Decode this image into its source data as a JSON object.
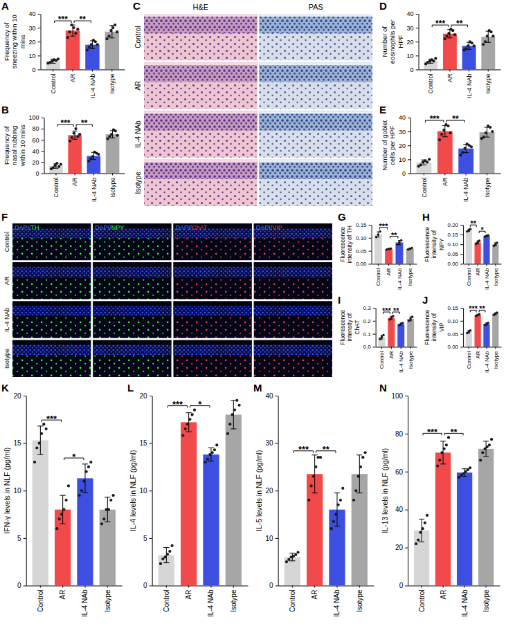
{
  "chart_data": [
    {
      "panel": "A",
      "type": "bar",
      "y_label": "Frequency of sneezing within 10 mins",
      "categories": [
        "Control",
        "AR",
        "IL-4 NAb",
        "Isotype"
      ],
      "values": [
        6,
        28,
        17.8,
        27.2
      ],
      "errors": [
        1.5,
        4,
        2.8,
        4.5
      ],
      "points": [
        [
          4.5,
          5,
          6,
          7,
          6.5,
          7.5
        ],
        [
          23,
          27,
          32,
          30,
          26,
          29
        ],
        [
          14,
          16,
          18,
          21,
          20,
          18
        ],
        [
          22,
          24,
          28,
          30,
          32,
          27
        ]
      ],
      "colors": [
        "#d6d6d6",
        "#f24a4a",
        "#3d4fe0",
        "#a6a6a6"
      ],
      "ylim": [
        0,
        40
      ],
      "yticks": [
        0,
        10,
        20,
        30,
        40
      ],
      "annotations": [
        {
          "between": [
            "Control",
            "AR"
          ],
          "text": "***"
        },
        {
          "between": [
            "AR",
            "IL-4 NAb"
          ],
          "text": "**"
        }
      ]
    },
    {
      "panel": "B",
      "type": "bar",
      "y_label": "Frequency of nasal rubbing within 10 mins",
      "categories": [
        "Control",
        "AR",
        "IL-4 NAb",
        "Isotype"
      ],
      "values": [
        13,
        68.5,
        31,
        70
      ],
      "errors": [
        4,
        7.5,
        6.5,
        6.5
      ],
      "points": [
        [
          8,
          10,
          14,
          18,
          12,
          16
        ],
        [
          58,
          64,
          72,
          80,
          66,
          70
        ],
        [
          22,
          26,
          30,
          38,
          36,
          34
        ],
        [
          62,
          66,
          70,
          78,
          76,
          68
        ]
      ],
      "colors": [
        "#d6d6d6",
        "#f24a4a",
        "#3d4fe0",
        "#a6a6a6"
      ],
      "ylim": [
        0,
        100
      ],
      "yticks": [
        0,
        20,
        40,
        60,
        80,
        100
      ],
      "annotations": [
        {
          "between": [
            "Control",
            "AR"
          ],
          "text": "***"
        },
        {
          "between": [
            "AR",
            "IL-4 NAb"
          ],
          "text": "**"
        }
      ]
    },
    {
      "panel": "D",
      "type": "bar",
      "y_label": "Number of eosinophils per HPF",
      "categories": [
        "Control",
        "AR",
        "IL-4 NAb",
        "Isotype"
      ],
      "values": [
        6,
        25.7,
        17,
        23.5
      ],
      "errors": [
        1.5,
        3,
        2.5,
        4
      ],
      "points": [
        [
          4,
          5,
          6,
          7,
          6,
          8
        ],
        [
          22,
          24,
          26,
          29,
          28,
          25
        ],
        [
          14,
          15,
          17,
          20,
          19,
          17
        ],
        [
          18,
          20,
          24,
          28,
          27,
          24
        ]
      ],
      "colors": [
        "#d6d6d6",
        "#f24a4a",
        "#3d4fe0",
        "#a6a6a6"
      ],
      "ylim": [
        0,
        40
      ],
      "yticks": [
        0,
        10,
        20,
        30,
        40
      ],
      "annotations": [
        {
          "between": [
            "Control",
            "AR"
          ],
          "text": "***"
        },
        {
          "between": [
            "AR",
            "IL-4 NAb"
          ],
          "text": "**"
        }
      ]
    },
    {
      "panel": "E",
      "type": "bar",
      "y_label": "Number of goblet cells per HPF",
      "categories": [
        "Control",
        "AR",
        "IL-4 NAb",
        "Isotype"
      ],
      "values": [
        7.8,
        30.2,
        17.8,
        29.5
      ],
      "errors": [
        1.8,
        4,
        3,
        3.5
      ],
      "points": [
        [
          5,
          6,
          8,
          9,
          8,
          10
        ],
        [
          24,
          28,
          31,
          35,
          34,
          29
        ],
        [
          13,
          15,
          18,
          21,
          20,
          19
        ],
        [
          25,
          26,
          29,
          34,
          33,
          30
        ]
      ],
      "colors": [
        "#d6d6d6",
        "#f24a4a",
        "#3d4fe0",
        "#a6a6a6"
      ],
      "ylim": [
        0,
        40
      ],
      "yticks": [
        0,
        10,
        20,
        30,
        40
      ],
      "annotations": [
        {
          "between": [
            "Control",
            "AR"
          ],
          "text": "***"
        },
        {
          "between": [
            "AR",
            "IL-4 NAb"
          ],
          "text": "**"
        }
      ]
    },
    {
      "panel": "G",
      "type": "bar",
      "y_label": "Fluorescence intensity of TH",
      "categories": [
        "Control",
        "AR",
        "IL-4 NAb",
        "Isotype"
      ],
      "values": [
        0.113,
        0.057,
        0.082,
        0.058
      ],
      "errors": [
        0.01,
        0.002,
        0.008,
        0.003
      ],
      "points": [
        [
          0.103,
          0.112,
          0.124
        ],
        [
          0.055,
          0.057,
          0.059
        ],
        [
          0.074,
          0.083,
          0.09
        ],
        [
          0.055,
          0.058,
          0.061
        ]
      ],
      "colors": [
        "#d6d6d6",
        "#f24a4a",
        "#3d4fe0",
        "#a6a6a6"
      ],
      "ylim": [
        0,
        0.15
      ],
      "yticks": [
        {
          "value": 0,
          "label": "0.00"
        },
        0.05,
        {
          "value": 0.1,
          "label": "0.10"
        },
        0.15
      ],
      "annotations": [
        {
          "between": [
            "Control",
            "AR"
          ],
          "text": "***"
        },
        {
          "between": [
            "AR",
            "IL-4 NAb"
          ],
          "text": "**"
        }
      ]
    },
    {
      "panel": "H",
      "type": "bar",
      "y_label": "Fluorescence intensity of NPY",
      "categories": [
        "Control",
        "AR",
        "IL-4 NAb",
        "Isotype"
      ],
      "values": [
        0.172,
        0.11,
        0.143,
        0.1
      ],
      "errors": [
        0.006,
        0.008,
        0.003,
        0.008
      ],
      "points": [
        [
          0.166,
          0.172,
          0.178
        ],
        [
          0.102,
          0.11,
          0.118
        ],
        [
          0.14,
          0.143,
          0.146
        ],
        [
          0.092,
          0.1,
          0.108
        ]
      ],
      "colors": [
        "#d6d6d6",
        "#f24a4a",
        "#3d4fe0",
        "#a6a6a6"
      ],
      "ylim": [
        0,
        0.2
      ],
      "yticks": [
        {
          "value": 0,
          "label": "0.00"
        },
        0.05,
        {
          "value": 0.1,
          "label": "0.10"
        },
        0.15,
        {
          "value": 0.2,
          "label": "0.20"
        }
      ],
      "annotations": [
        {
          "between": [
            "Control",
            "AR"
          ],
          "text": "**"
        },
        {
          "between": [
            "AR",
            "IL-4 NAb"
          ],
          "text": "*"
        }
      ]
    },
    {
      "panel": "I",
      "type": "bar",
      "y_label": "Fluorescence intensity of ChAT",
      "categories": [
        "Control",
        "AR",
        "IL-4 NAb",
        "Isotype"
      ],
      "values": [
        0.075,
        0.223,
        0.175,
        0.215
      ],
      "errors": [
        0.015,
        0.012,
        0.008,
        0.015
      ],
      "points": [
        [
          0.06,
          0.075,
          0.09
        ],
        [
          0.21,
          0.223,
          0.236
        ],
        [
          0.167,
          0.175,
          0.183
        ],
        [
          0.2,
          0.215,
          0.23
        ]
      ],
      "colors": [
        "#d6d6d6",
        "#f24a4a",
        "#3d4fe0",
        "#a6a6a6"
      ],
      "ylim": [
        0,
        0.3
      ],
      "yticks": [
        {
          "value": 0,
          "label": "0.0"
        },
        0.1,
        0.2,
        0.3
      ],
      "annotations": [
        {
          "between": [
            "Control",
            "AR"
          ],
          "text": "***"
        },
        {
          "between": [
            "AR",
            "IL-4 NAb"
          ],
          "text": "**"
        }
      ]
    },
    {
      "panel": "J",
      "type": "bar",
      "y_label": "Fluorescence intensity of VIP",
      "categories": [
        "Control",
        "AR",
        "IL-4 NAb",
        "Isotype"
      ],
      "values": [
        0.058,
        0.122,
        0.088,
        0.127
      ],
      "errors": [
        0.005,
        0.003,
        0.004,
        0.004
      ],
      "points": [
        [
          0.053,
          0.058,
          0.063
        ],
        [
          0.119,
          0.122,
          0.125
        ],
        [
          0.084,
          0.088,
          0.092
        ],
        [
          0.123,
          0.127,
          0.131
        ]
      ],
      "colors": [
        "#d6d6d6",
        "#f24a4a",
        "#3d4fe0",
        "#a6a6a6"
      ],
      "ylim": [
        0,
        0.15
      ],
      "yticks": [
        {
          "value": 0,
          "label": "0.00"
        },
        0.05,
        {
          "value": 0.1,
          "label": "0.10"
        },
        0.15
      ],
      "annotations": [
        {
          "between": [
            "Control",
            "AR"
          ],
          "text": "***"
        },
        {
          "between": [
            "AR",
            "IL-4 NAb"
          ],
          "text": "**"
        }
      ]
    },
    {
      "panel": "K",
      "type": "bar",
      "y_label": "IFN-γ levels in NLF (pg/ml)",
      "categories": [
        "Control",
        "AR",
        "IL-4 NAb",
        "Isotype"
      ],
      "values": [
        15.3,
        8,
        11.3,
        8
      ],
      "errors": [
        1.5,
        1.5,
        1.5,
        1.3
      ],
      "points": [
        [
          13,
          14.5,
          15,
          16,
          17,
          16.5
        ],
        [
          6,
          7,
          7.5,
          8,
          9,
          10.5
        ],
        [
          9.5,
          10,
          11,
          12,
          12.5,
          13
        ],
        [
          6.5,
          7,
          8,
          8,
          9,
          9.5
        ]
      ],
      "colors": [
        "#d6d6d6",
        "#f24a4a",
        "#3d4fe0",
        "#a6a6a6"
      ],
      "ylim": [
        0,
        20
      ],
      "yticks": [
        0,
        5,
        10,
        15,
        20
      ],
      "annotations": [
        {
          "between": [
            "Control",
            "AR"
          ],
          "text": "***"
        },
        {
          "between": [
            "AR",
            "IL-4 NAb"
          ],
          "text": "*"
        }
      ]
    },
    {
      "panel": "L",
      "type": "bar",
      "y_label": "IL-4 levels in NLF (pg/ml)",
      "categories": [
        "Control",
        "AR",
        "IL-4 NAb",
        "Isotype"
      ],
      "values": [
        3.2,
        17.2,
        13.8,
        18
      ],
      "errors": [
        0.8,
        1,
        0.7,
        1.5
      ],
      "points": [
        [
          2.3,
          2.8,
          3,
          3.3,
          3.6,
          4.2
        ],
        [
          15.8,
          16.5,
          17,
          17.5,
          18,
          18.5
        ],
        [
          13,
          13.3,
          13.8,
          14,
          14.3,
          14.8
        ],
        [
          16,
          17,
          18,
          18.5,
          19.5,
          19
        ]
      ],
      "colors": [
        "#d6d6d6",
        "#f24a4a",
        "#3d4fe0",
        "#a6a6a6"
      ],
      "ylim": [
        0,
        20
      ],
      "yticks": [
        0,
        5,
        10,
        15,
        20
      ],
      "annotations": [
        {
          "between": [
            "Control",
            "AR"
          ],
          "text": "***"
        },
        {
          "between": [
            "AR",
            "IL-4 NAb"
          ],
          "text": "*"
        }
      ]
    },
    {
      "panel": "M",
      "type": "bar",
      "y_label": "IL-5 levels in NLF (pg/ml)",
      "categories": [
        "Control",
        "AR",
        "IL-4 NAb",
        "Isotype"
      ],
      "values": [
        6,
        23.5,
        16,
        23.5
      ],
      "errors": [
        0.8,
        4,
        3.5,
        4
      ],
      "points": [
        [
          5,
          5.5,
          6,
          6.2,
          6.5,
          7
        ],
        [
          18,
          21,
          23,
          25,
          27,
          27
        ],
        [
          12,
          13.5,
          15,
          17,
          18,
          20.5
        ],
        [
          18,
          20,
          23,
          25,
          27,
          28
        ]
      ],
      "colors": [
        "#d6d6d6",
        "#f24a4a",
        "#3d4fe0",
        "#a6a6a6"
      ],
      "ylim": [
        0,
        40
      ],
      "yticks": [
        0,
        10,
        20,
        30,
        40
      ],
      "annotations": [
        {
          "between": [
            "Control",
            "AR"
          ],
          "text": "***"
        },
        {
          "between": [
            "AR",
            "IL-4 NAb"
          ],
          "text": "**"
        }
      ]
    },
    {
      "panel": "N",
      "type": "bar",
      "y_label": "IL-13 levels in NLF (pg/ml)",
      "categories": [
        "Control",
        "AR",
        "IL-4 NAb",
        "Isotype"
      ],
      "values": [
        29,
        70,
        59.5,
        72
      ],
      "errors": [
        6,
        6,
        2,
        4
      ],
      "points": [
        [
          22,
          24,
          28,
          30,
          33,
          37
        ],
        [
          63,
          66,
          70,
          72,
          74,
          78
        ],
        [
          57,
          58,
          59,
          60,
          61,
          62
        ],
        [
          66,
          70,
          72,
          73,
          74,
          77
        ]
      ],
      "colors": [
        "#d6d6d6",
        "#f24a4a",
        "#3d4fe0",
        "#a6a6a6"
      ],
      "ylim": [
        0,
        100
      ],
      "yticks": [
        0,
        20,
        40,
        60,
        80,
        100
      ],
      "annotations": [
        {
          "between": [
            "Control",
            "AR"
          ],
          "text": "***"
        },
        {
          "between": [
            "AR",
            "IL-4 NAb"
          ],
          "text": "**"
        }
      ]
    }
  ],
  "panel_c": {
    "panel": "C",
    "columns": [
      "H&E",
      "PAS"
    ],
    "rows": [
      "Control",
      "AR",
      "IL-4 NAb",
      "Isotype"
    ]
  },
  "panel_f": {
    "panel": "F",
    "columns": [
      "DAPI/TH",
      "DAPI/NPY",
      "DAPI/ChAT",
      "DAPI/VIP"
    ],
    "colors": [
      "#33ff33",
      "#33ff33",
      "#ff3b3b",
      "#ff3b3b"
    ],
    "rows": [
      "Control",
      "AR",
      "IL-4 NAb",
      "Isotype"
    ]
  }
}
